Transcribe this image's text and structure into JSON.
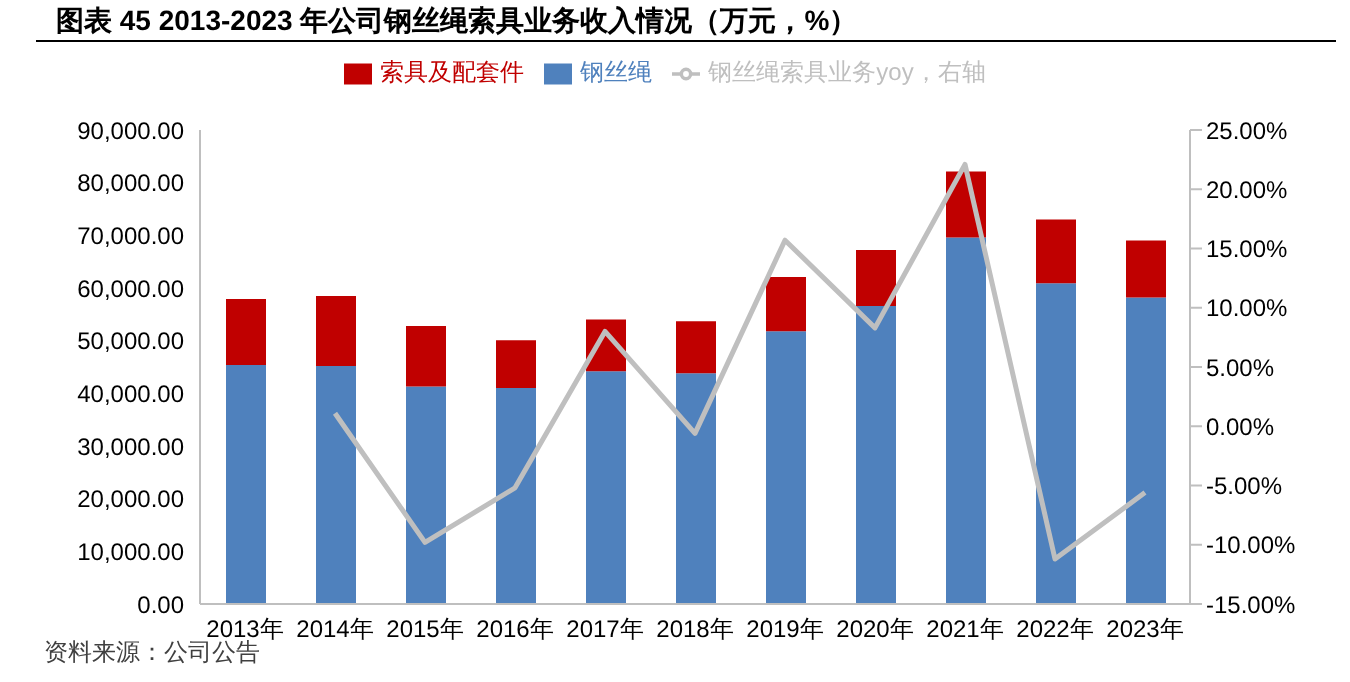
{
  "chart_data": {
    "type": "bar",
    "title": "图表 45 2013-2023 年公司钢丝绳索具业务收入情况（万元，%）",
    "categories": [
      "2013年",
      "2014年",
      "2015年",
      "2016年",
      "2017年",
      "2018年",
      "2019年",
      "2020年",
      "2021年",
      "2022年",
      "2023年"
    ],
    "stacked": true,
    "series": [
      {
        "name": "钢丝绳",
        "color": "#4f81bd",
        "values": [
          45400,
          45200,
          41300,
          41000,
          44200,
          43800,
          51800,
          56600,
          69600,
          60900,
          58200
        ]
      },
      {
        "name": "索具及配套件",
        "color": "#c00000",
        "values": [
          12500,
          13300,
          11500,
          9100,
          9800,
          9900,
          10300,
          10600,
          12500,
          12100,
          10800
        ]
      },
      {
        "name": "钢丝绳索具业务yoy，右轴",
        "type": "line",
        "axis": "y2",
        "color": "#bfbfbf",
        "values": [
          null,
          1.1,
          -9.8,
          -5.2,
          8.0,
          -0.6,
          15.7,
          8.3,
          22.1,
          -11.2,
          -5.6
        ]
      }
    ],
    "ylim": [
      0,
      90000
    ],
    "yticks": [
      {
        "value": 0,
        "label": "0.00"
      },
      {
        "value": 10000,
        "label": "10,000.00"
      },
      {
        "value": 20000,
        "label": "20,000.00"
      },
      {
        "value": 30000,
        "label": "30,000.00"
      },
      {
        "value": 40000,
        "label": "40,000.00"
      },
      {
        "value": 50000,
        "label": "50,000.00"
      },
      {
        "value": 60000,
        "label": "60,000.00"
      },
      {
        "value": 70000,
        "label": "70,000.00"
      },
      {
        "value": 80000,
        "label": "80,000.00"
      },
      {
        "value": 90000,
        "label": "90,000.00"
      }
    ],
    "y2lim": [
      -15,
      25
    ],
    "y2ticks": [
      {
        "value": -15,
        "label": "-15.00%"
      },
      {
        "value": -10,
        "label": "-10.00%"
      },
      {
        "value": -5,
        "label": "-5.00%"
      },
      {
        "value": 0,
        "label": "0.00%"
      },
      {
        "value": 5,
        "label": "5.00%"
      },
      {
        "value": 10,
        "label": "10.00%"
      },
      {
        "value": 15,
        "label": "15.00%"
      },
      {
        "value": 20,
        "label": "20.00%"
      },
      {
        "value": 25,
        "label": "25.00%"
      }
    ],
    "grid": false,
    "legend": "top",
    "marker": "none",
    "line_style": "solid",
    "annotations": [
      "资料来源：公司公告"
    ]
  }
}
